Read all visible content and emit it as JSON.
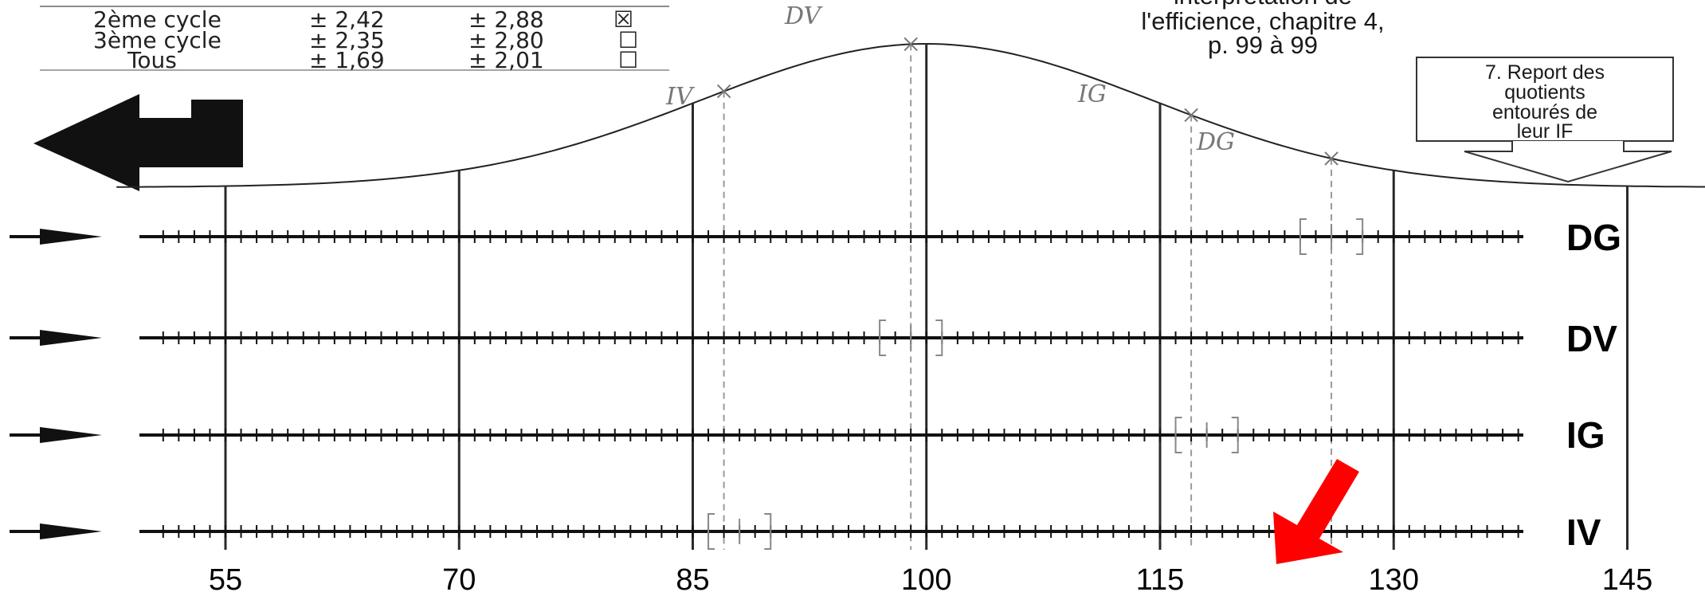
{
  "cycle_table": {
    "rows": [
      {
        "label": "2ème cycle",
        "v1": "± 2,42",
        "v2": "± 2,88",
        "box": "☒"
      },
      {
        "label": "3ème cycle",
        "v1": "± 2,35",
        "v2": "± 2,80",
        "box": "☐"
      },
      {
        "label": "Tous",
        "v1": "± 1,69",
        "v2": "± 2,01",
        "box": "☐"
      }
    ]
  },
  "efficience_note": {
    "lines": [
      "interprétation de",
      "l'efficience, chapitre 4,",
      "p. 99 à 99"
    ]
  },
  "report_box": {
    "lines": [
      "7. Report des",
      "quotients",
      "entourés de",
      "leur IF"
    ]
  },
  "curve_annotations": [
    "DV",
    "IV",
    "IG",
    "DG"
  ],
  "rows": [
    "DG",
    "DV",
    "IG",
    "IV"
  ],
  "scale": {
    "ticks": [
      "55",
      "70",
      "85",
      "100",
      "115",
      "130",
      "145"
    ],
    "tick_values": [
      55,
      70,
      85,
      100,
      115,
      130,
      145
    ]
  },
  "markers": [
    {
      "row": "DG",
      "low": 124,
      "high": 128
    },
    {
      "row": "DV",
      "low": 97,
      "high": 101
    },
    {
      "row": "IG",
      "low": 116,
      "high": 120
    },
    {
      "row": "IV",
      "low": 86,
      "high": 90
    }
  ],
  "curve_points": [
    {
      "name": "IV",
      "value": 87
    },
    {
      "name": "DV",
      "value": 99
    },
    {
      "name": "IG",
      "value": 117
    },
    {
      "name": "DG",
      "value": 126
    }
  ],
  "colors": {
    "ink": "#111111",
    "pencil": "#8a8a8a",
    "arrow_red": "#ff0000"
  },
  "icons": {
    "return": "return-arrow-icon",
    "row_pointer": "row-pointer-arrow-icon",
    "highlight": "red-pointer-arrow-icon"
  }
}
